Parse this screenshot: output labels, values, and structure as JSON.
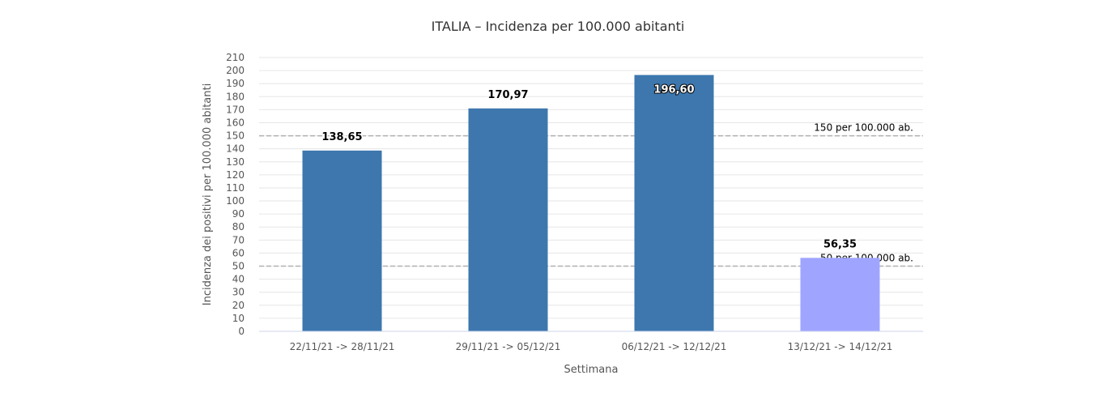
{
  "chart_data": {
    "type": "bar",
    "title": "ITALIA – Incidenza per 100.000 abitanti",
    "xlabel": "Settimana",
    "ylabel": "Incidenza dei positivi per 100.000 abitanti",
    "ylim": [
      0,
      210
    ],
    "ytick_step": 10,
    "grid": true,
    "categories": [
      "22/11/21 -> 28/11/21",
      "29/11/21 -> 05/12/21",
      "06/12/21 -> 12/12/21",
      "13/12/21 -> 14/12/21"
    ],
    "values": [
      138.65,
      170.97,
      196.6,
      56.35
    ],
    "value_labels": [
      "138,65",
      "170,97",
      "196,60",
      "56,35"
    ],
    "bar_colors": [
      "#3d77ae",
      "#3d77ae",
      "#3d77ae",
      "#9fa5ff"
    ],
    "reference_lines": [
      {
        "value": 150,
        "label": "150 per 100.000 ab."
      },
      {
        "value": 50,
        "label": "50 per 100.000 ab."
      }
    ]
  },
  "colors": {
    "bar": "#3d77ae",
    "bar_partial": "#9fa5ff",
    "grid": "#e6e6e6",
    "reference_line": "#b0b0b0"
  }
}
